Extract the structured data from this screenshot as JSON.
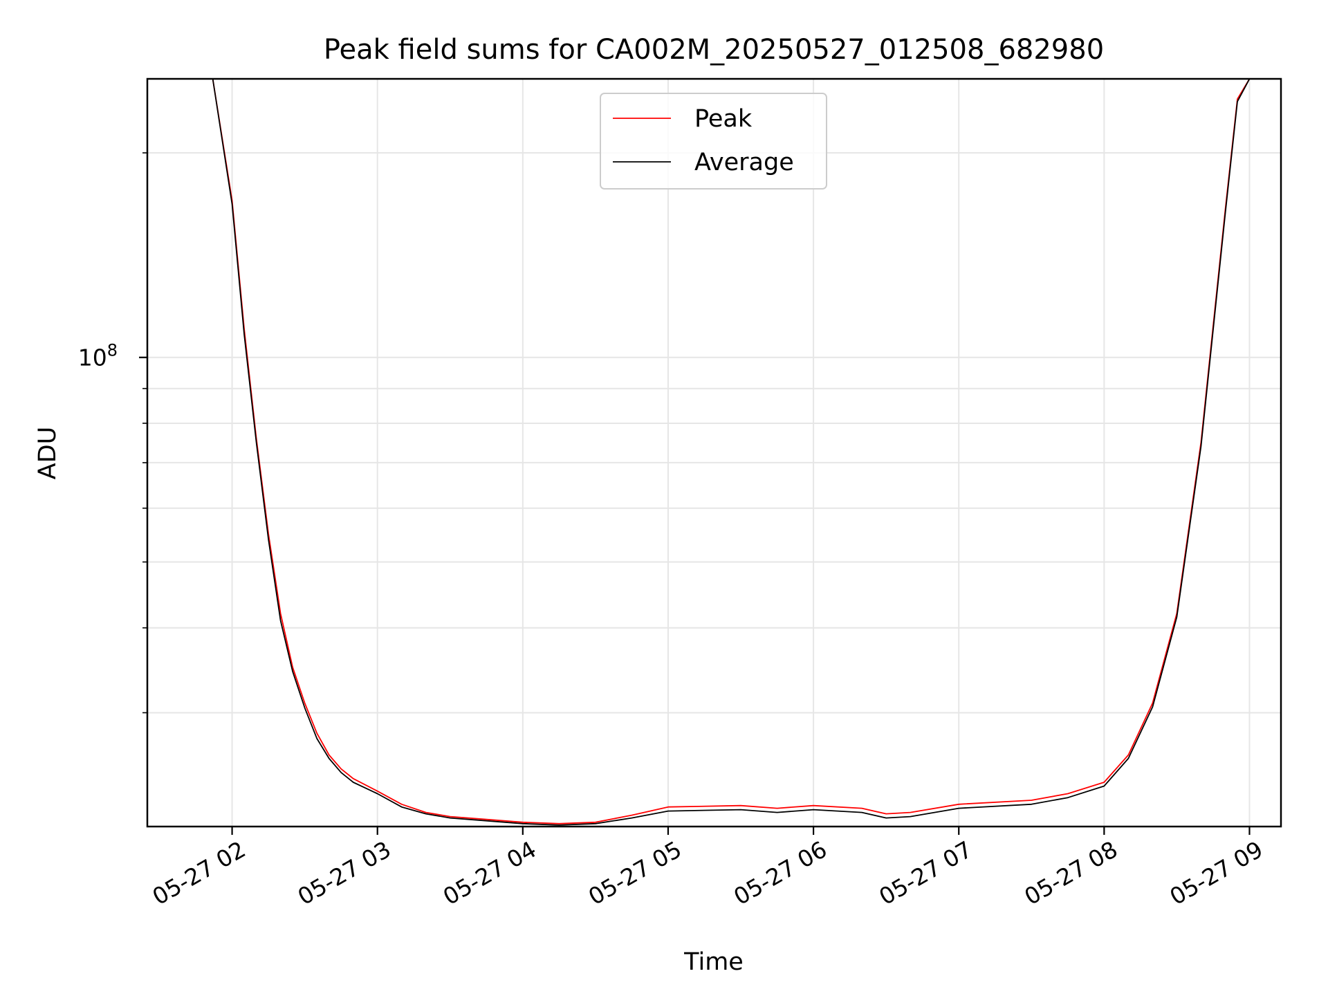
{
  "chart_data": {
    "type": "line",
    "title": "Peak field sums for CA002M_20250527_012508_682980",
    "xlabel": "Time",
    "ylabel": "ADU",
    "x_ticks": [
      "05-27 02",
      "05-27 03",
      "05-27 04",
      "05-27 05",
      "05-27 06",
      "05-27 07",
      "05-27 08",
      "05-27 09"
    ],
    "y_tick_label": {
      "base": "10",
      "exponent": "8"
    },
    "xlim": [
      "2025-05-27 01:25",
      "2025-05-27 09:13"
    ],
    "ylim": [
      20400000,
      257000000
    ],
    "yscale": "log",
    "grid": true,
    "legend_position": "top-center",
    "series": [
      {
        "name": "Peak",
        "color": "#ff0000",
        "x": [
          "2025-05-27 01:52",
          "2025-05-27 02:00",
          "2025-05-27 02:05",
          "2025-05-27 02:10",
          "2025-05-27 02:15",
          "2025-05-27 02:20",
          "2025-05-27 02:25",
          "2025-05-27 02:30",
          "2025-05-27 02:35",
          "2025-05-27 02:40",
          "2025-05-27 02:45",
          "2025-05-27 02:50",
          "2025-05-27 03:00",
          "2025-05-27 03:10",
          "2025-05-27 03:20",
          "2025-05-27 03:30",
          "2025-05-27 03:45",
          "2025-05-27 04:00",
          "2025-05-27 04:15",
          "2025-05-27 04:30",
          "2025-05-27 04:45",
          "2025-05-27 05:00",
          "2025-05-27 05:30",
          "2025-05-27 05:45",
          "2025-05-27 06:00",
          "2025-05-27 06:20",
          "2025-05-27 06:30",
          "2025-05-27 06:40",
          "2025-05-27 07:00",
          "2025-05-27 07:30",
          "2025-05-27 07:45",
          "2025-05-27 08:00",
          "2025-05-27 08:10",
          "2025-05-27 08:20",
          "2025-05-27 08:30",
          "2025-05-27 08:40",
          "2025-05-27 08:50",
          "2025-05-27 08:55",
          "2025-05-27 09:00"
        ],
        "y": [
          257000000,
          170000000,
          110000000,
          76000000,
          55000000,
          42000000,
          35000000,
          31000000,
          28000000,
          26000000,
          24800000,
          24000000,
          23000000,
          22000000,
          21400000,
          21100000,
          20900000,
          20700000,
          20600000,
          20700000,
          21200000,
          21800000,
          21900000,
          21700000,
          21900000,
          21700000,
          21300000,
          21400000,
          22000000,
          22300000,
          22800000,
          23700000,
          26000000,
          31000000,
          42000000,
          75000000,
          165000000,
          240000000,
          257000000
        ]
      },
      {
        "name": "Average",
        "color": "#000000",
        "x": [
          "2025-05-27 01:52",
          "2025-05-27 02:00",
          "2025-05-27 02:05",
          "2025-05-27 02:10",
          "2025-05-27 02:15",
          "2025-05-27 02:20",
          "2025-05-27 02:25",
          "2025-05-27 02:30",
          "2025-05-27 02:35",
          "2025-05-27 02:40",
          "2025-05-27 02:45",
          "2025-05-27 02:50",
          "2025-05-27 03:00",
          "2025-05-27 03:10",
          "2025-05-27 03:20",
          "2025-05-27 03:30",
          "2025-05-27 03:45",
          "2025-05-27 04:00",
          "2025-05-27 04:15",
          "2025-05-27 04:30",
          "2025-05-27 04:45",
          "2025-05-27 05:00",
          "2025-05-27 05:30",
          "2025-05-27 05:45",
          "2025-05-27 06:00",
          "2025-05-27 06:20",
          "2025-05-27 06:30",
          "2025-05-27 06:40",
          "2025-05-27 07:00",
          "2025-05-27 07:30",
          "2025-05-27 07:45",
          "2025-05-27 08:00",
          "2025-05-27 08:10",
          "2025-05-27 08:20",
          "2025-05-27 08:30",
          "2025-05-27 08:40",
          "2025-05-27 08:50",
          "2025-05-27 08:55",
          "2025-05-27 09:00"
        ],
        "y": [
          257000000,
          168000000,
          108000000,
          75000000,
          54000000,
          41000000,
          34500000,
          30500000,
          27500000,
          25700000,
          24500000,
          23700000,
          22800000,
          21800000,
          21300000,
          21000000,
          20800000,
          20600000,
          20500000,
          20600000,
          21000000,
          21500000,
          21600000,
          21400000,
          21600000,
          21400000,
          21000000,
          21100000,
          21700000,
          22000000,
          22500000,
          23400000,
          25700000,
          30600000,
          41500000,
          74000000,
          163000000,
          238000000,
          257000000
        ]
      }
    ]
  }
}
